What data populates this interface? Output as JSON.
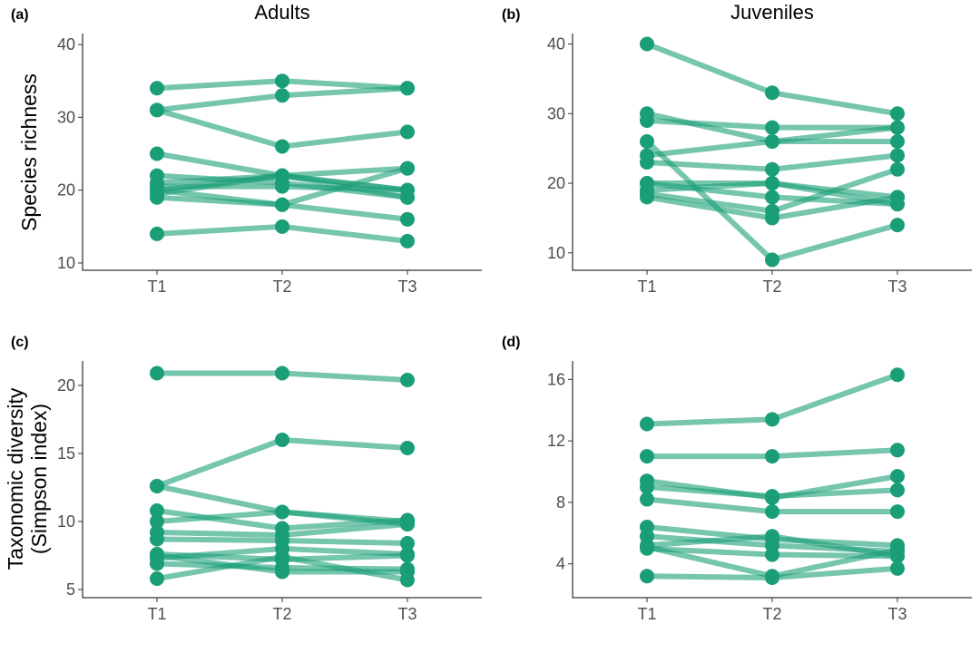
{
  "column_titles": [
    "Adults",
    "Juveniles"
  ],
  "y_labels": {
    "top": "Species richness",
    "bottom_line1": "Taxonomic diversity",
    "bottom_line2": "(Simpson index)"
  },
  "colors": {
    "line": "#1a9e77",
    "line_alpha": 0.6,
    "point": "#1a9e77"
  },
  "chart_data": [
    {
      "panel": "(a)",
      "type": "line",
      "x": [
        "T1",
        "T2",
        "T3"
      ],
      "ylim": [
        9,
        41.5
      ],
      "yticks": [
        10,
        20,
        30,
        40
      ],
      "series": [
        {
          "values": [
            34,
            35,
            34
          ]
        },
        {
          "values": [
            31,
            33,
            34
          ]
        },
        {
          "values": [
            31,
            26,
            28
          ]
        },
        {
          "values": [
            25,
            22,
            20
          ]
        },
        {
          "values": [
            22,
            21,
            19
          ]
        },
        {
          "values": [
            21,
            22,
            23
          ]
        },
        {
          "values": [
            20.5,
            20.5,
            20
          ]
        },
        {
          "values": [
            20,
            22,
            19
          ]
        },
        {
          "values": [
            19.5,
            22,
            20
          ]
        },
        {
          "values": [
            19,
            18,
            16
          ]
        },
        {
          "values": [
            20,
            18,
            23
          ]
        },
        {
          "values": [
            14,
            15,
            13
          ]
        }
      ]
    },
    {
      "panel": "(b)",
      "type": "line",
      "x": [
        "T1",
        "T2",
        "T3"
      ],
      "ylim": [
        7.5,
        41.5
      ],
      "yticks": [
        10,
        20,
        30,
        40
      ],
      "series": [
        {
          "values": [
            40,
            33,
            30
          ]
        },
        {
          "values": [
            30,
            26,
            28
          ]
        },
        {
          "values": [
            29,
            28,
            28
          ]
        },
        {
          "values": [
            26,
            9,
            14
          ]
        },
        {
          "values": [
            24,
            26,
            26
          ]
        },
        {
          "values": [
            23,
            22,
            24
          ]
        },
        {
          "values": [
            20,
            20,
            17
          ]
        },
        {
          "values": [
            20,
            18,
            17
          ]
        },
        {
          "values": [
            19,
            20,
            18
          ]
        },
        {
          "values": [
            18.5,
            16,
            22
          ]
        },
        {
          "values": [
            18,
            15,
            18
          ]
        }
      ]
    },
    {
      "panel": "(c)",
      "type": "line",
      "x": [
        "T1",
        "T2",
        "T3"
      ],
      "ylim": [
        4.4,
        21.8
      ],
      "yticks": [
        5,
        10,
        15,
        20
      ],
      "series": [
        {
          "values": [
            20.9,
            20.9,
            20.4
          ]
        },
        {
          "values": [
            12.6,
            16,
            15.4
          ]
        },
        {
          "values": [
            12.6,
            10.7,
            9.8
          ]
        },
        {
          "values": [
            10.8,
            9.5,
            10.1
          ]
        },
        {
          "values": [
            10.0,
            10.7,
            10.0
          ]
        },
        {
          "values": [
            9.2,
            9.0,
            9.8
          ]
        },
        {
          "values": [
            8.7,
            8.6,
            8.4
          ]
        },
        {
          "values": [
            7.6,
            7.2,
            7.5
          ]
        },
        {
          "values": [
            7.3,
            8.0,
            7.6
          ]
        },
        {
          "values": [
            6.9,
            6.6,
            6.5
          ]
        },
        {
          "values": [
            5.8,
            7.4,
            5.7
          ]
        },
        {
          "values": [
            7.5,
            6.3,
            6.3
          ]
        }
      ]
    },
    {
      "panel": "(d)",
      "type": "line",
      "x": [
        "T1",
        "T2",
        "T3"
      ],
      "ylim": [
        1.8,
        17.2
      ],
      "yticks": [
        4,
        8,
        12,
        16
      ],
      "series": [
        {
          "values": [
            13.1,
            13.4,
            16.3
          ]
        },
        {
          "values": [
            11.0,
            11.0,
            11.4
          ]
        },
        {
          "values": [
            9.4,
            8.3,
            9.7
          ]
        },
        {
          "values": [
            9.0,
            8.4,
            8.8
          ]
        },
        {
          "values": [
            8.2,
            7.4,
            7.4
          ]
        },
        {
          "values": [
            6.4,
            5.6,
            5.2
          ]
        },
        {
          "values": [
            5.8,
            5.2,
            4.8
          ]
        },
        {
          "values": [
            5.2,
            5.8,
            4.5
          ]
        },
        {
          "values": [
            5.0,
            4.6,
            4.5
          ]
        },
        {
          "values": [
            5.1,
            3.2,
            4.9
          ]
        },
        {
          "values": [
            3.2,
            3.1,
            3.7
          ]
        }
      ]
    }
  ]
}
